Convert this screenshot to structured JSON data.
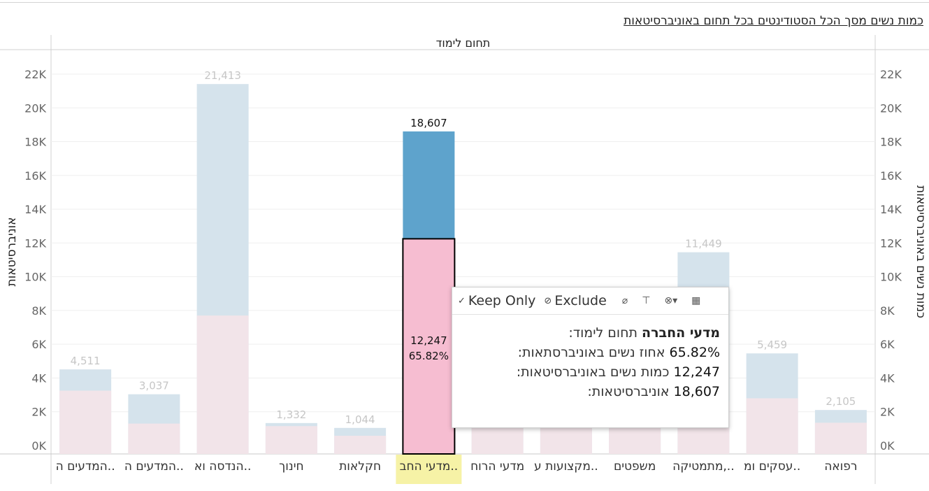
{
  "title": "כמות נשים מסך הכל הסטודינטים בכל תחום באוניברסיטאות",
  "tooltip": {
    "keep_only": "Keep Only",
    "exclude": "Exclude",
    "row1_value": "מדעי החברה",
    "row1_label": "תחום לימוד:",
    "row2_value": "65.82%",
    "row2_label": "אחוז נשים באוניברסתאות:",
    "row3_value": "12,247",
    "row3_label": "כמות נשים באוניברסיטאות:",
    "row4_value": "18,607",
    "row4_label": "אוניברסיטאות:"
  },
  "colors": {
    "total_bar": "#d5e3ec",
    "women_bar": "#f2e4e9",
    "total_selected": "#5ea3cc",
    "women_selected": "#f6bdd1",
    "highlight_label": "#f6f2a6"
  },
  "chart_data": {
    "type": "bar",
    "top_header": "תחום לימוד",
    "ylabel_left": "אוניברסיטאות",
    "ylabel_right": "כמות נשים באוניברסיטאות",
    "ylim": [
      0,
      23000
    ],
    "yticks": [
      "0K",
      "2K",
      "4K",
      "6K",
      "8K",
      "10K",
      "12K",
      "14K",
      "16K",
      "18K",
      "20K",
      "22K"
    ],
    "categories": [
      "המדעים ה..",
      "המדעים ה..",
      "הנדסה וא..",
      "חינוך",
      "חקלאות",
      "מדעי החב..",
      "מדעי הרוח",
      "מקצועות ע..",
      "משפטים",
      "מתמטיקה,..",
      "עסקים ומ..",
      "רפואה"
    ],
    "series": [
      {
        "name": "אוניברסיטאות",
        "values": [
          4511,
          3037,
          21413,
          1332,
          1044,
          18607,
          2300,
          2000,
          2300,
          11449,
          5459,
          2105
        ]
      },
      {
        "name": "כמות נשים באוניברסיטאות",
        "values": [
          3250,
          1300,
          7700,
          1150,
          580,
          12247,
          1700,
          1500,
          1900,
          2600,
          2800,
          1350
        ]
      }
    ],
    "total_labels": [
      "4,511",
      "3,037",
      "21,413",
      "1,332",
      "1,044",
      "18,607",
      "",
      "",
      "",
      "11,449",
      "5,459",
      "2,105"
    ],
    "selected_index": 5,
    "selected_women_label": "12,247",
    "selected_pct_label": "65.82%"
  }
}
